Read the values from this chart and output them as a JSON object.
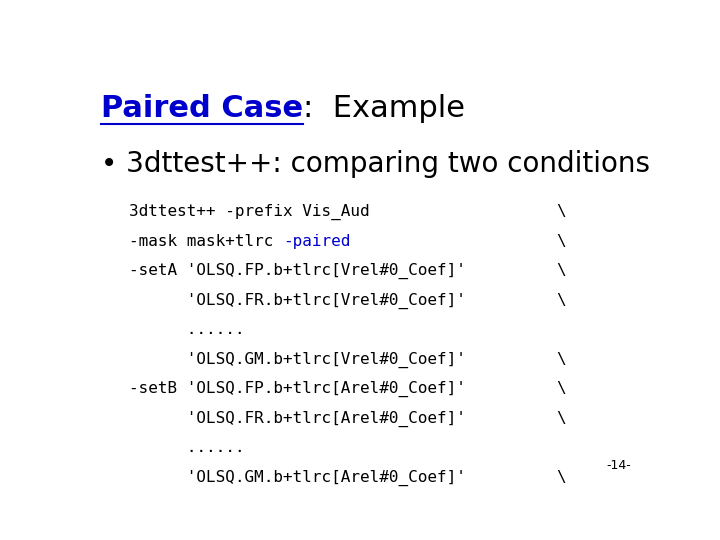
{
  "title_part1": "Paired Case",
  "title_part2": ":  Example",
  "bullet_text": "3dttest++: comparing two conditions",
  "title_color": "#0000cc",
  "title_fontsize": 22,
  "bullet_fontsize": 20,
  "code_fontsize": 11.5,
  "bg_color": "#ffffff",
  "code_lines": [
    {
      "text": "3dttest++ -prefix Vis_Aud",
      "backslash": true,
      "segments": [
        {
          "text": "3dttest++ -prefix Vis_Aud",
          "color": "#000000"
        }
      ]
    },
    {
      "text": "-mask mask+tlrc -paired",
      "backslash": true,
      "segments": [
        {
          "text": "-mask mask+tlrc ",
          "color": "#000000"
        },
        {
          "text": "-paired",
          "color": "#0000cc"
        }
      ]
    },
    {
      "text": "-setA 'OLSQ.FP.b+tlrc[Vrel#0_Coef]'",
      "backslash": true,
      "segments": [
        {
          "text": "-setA 'OLSQ.FP.b+tlrc[Vrel#0_Coef]'",
          "color": "#000000"
        }
      ]
    },
    {
      "text": "      'OLSQ.FR.b+tlrc[Vrel#0_Coef]'",
      "backslash": true,
      "segments": [
        {
          "text": "      'OLSQ.FR.b+tlrc[Vrel#0_Coef]'",
          "color": "#000000"
        }
      ]
    },
    {
      "text": "      ......",
      "backslash": false,
      "segments": [
        {
          "text": "      ......",
          "color": "#000000"
        }
      ]
    },
    {
      "text": "      'OLSQ.GM.b+tlrc[Vrel#0_Coef]'",
      "backslash": true,
      "segments": [
        {
          "text": "      'OLSQ.GM.b+tlrc[Vrel#0_Coef]'",
          "color": "#000000"
        }
      ]
    },
    {
      "text": "-setB 'OLSQ.FP.b+tlrc[Arel#0_Coef]'",
      "backslash": true,
      "segments": [
        {
          "text": "-setB 'OLSQ.FP.b+tlrc[Arel#0_Coef]'",
          "color": "#000000"
        }
      ]
    },
    {
      "text": "      'OLSQ.FR.b+tlrc[Arel#0_Coef]'",
      "backslash": true,
      "segments": [
        {
          "text": "      'OLSQ.FR.b+tlrc[Arel#0_Coef]'",
          "color": "#000000"
        }
      ]
    },
    {
      "text": "      ......",
      "backslash": false,
      "segments": [
        {
          "text": "      ......",
          "color": "#000000"
        }
      ]
    },
    {
      "text": "      'OLSQ.GM.b+tlrc[Arel#0_Coef]'",
      "backslash": true,
      "segments": [
        {
          "text": "      'OLSQ.GM.b+tlrc[Arel#0_Coef]'",
          "color": "#000000"
        }
      ]
    }
  ],
  "page_number": "-14-"
}
